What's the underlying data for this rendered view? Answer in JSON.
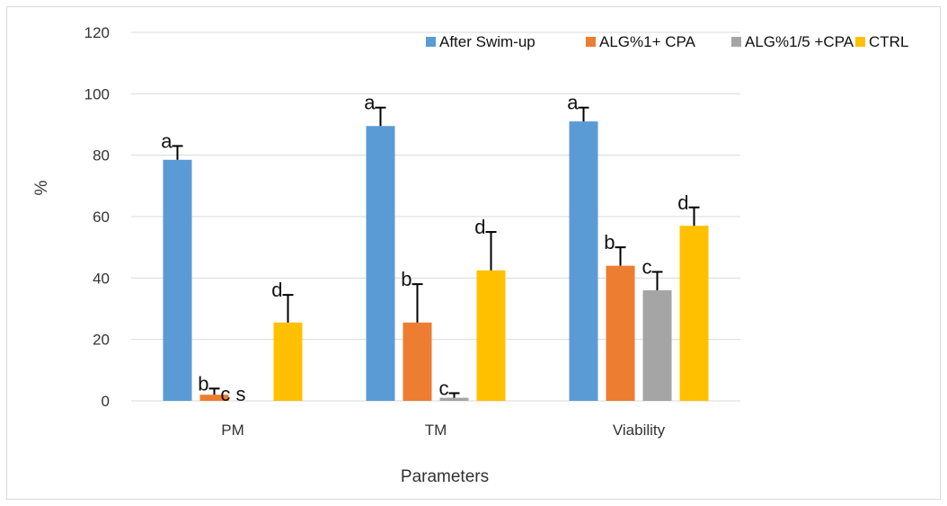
{
  "chart_data": {
    "type": "bar",
    "categories": [
      "PM",
      "TM",
      "Viability"
    ],
    "series": [
      {
        "name": "After Swim-up",
        "color": "#5b9bd5",
        "values": [
          78.5,
          89.5,
          91
        ],
        "errors": [
          4.5,
          6,
          4.5
        ],
        "letters": [
          "a",
          "a",
          "a"
        ]
      },
      {
        "name": "ALG%1+ CPA",
        "color": "#ed7d31",
        "values": [
          2,
          25.5,
          44
        ],
        "errors": [
          2,
          12.5,
          6
        ],
        "letters": [
          "b",
          "b",
          "b"
        ]
      },
      {
        "name": "ALG%1/5 +CPA",
        "color": "#a5a5a5",
        "values": [
          0,
          1,
          36
        ],
        "errors": [
          0,
          1.5,
          6
        ],
        "letters": [
          "c s",
          "c",
          "c"
        ]
      },
      {
        "name": "CTRL",
        "color": "#ffc000",
        "values": [
          25.5,
          42.5,
          57
        ],
        "errors": [
          9,
          12.5,
          6
        ],
        "letters": [
          "d",
          "d",
          "d"
        ]
      }
    ],
    "ylim": [
      0,
      120
    ],
    "yticks": [
      "0",
      "20",
      "40",
      "60",
      "80",
      "100",
      "120"
    ],
    "xlabel": "Parameters",
    "ylabel": "%",
    "grid": true,
    "legend_position": "top-right"
  }
}
